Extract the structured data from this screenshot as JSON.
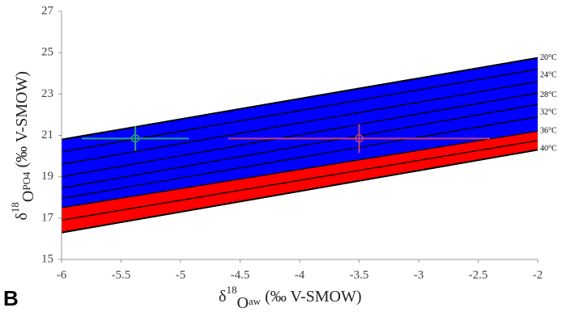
{
  "chart_data": {
    "type": "line",
    "panel_label": "B",
    "xlabel": [
      "δ",
      "18",
      "O",
      "aw",
      " (‰ V-SMOW)"
    ],
    "ylabel": [
      "δ",
      "18",
      "O",
      "PO4",
      " (‰ V-SMOW)"
    ],
    "xlim": [
      -6,
      -2
    ],
    "ylim": [
      15,
      27
    ],
    "xticks": [
      -6,
      -5.5,
      -5,
      -4.5,
      -4,
      -3.5,
      -3,
      -2.5,
      -2
    ],
    "yticks": [
      15,
      17,
      19,
      21,
      23,
      25,
      27
    ],
    "x": [
      -6,
      -2
    ],
    "bands": [
      {
        "color": "#0000ff",
        "lower": [
          17.5,
          21.2
        ],
        "upper": [
          20.8,
          24.75
        ]
      },
      {
        "color": "#ff0000",
        "lower": [
          16.3,
          20.3
        ],
        "upper": [
          17.5,
          21.2
        ]
      }
    ],
    "line_color": "#000000",
    "lines": [
      [
        20.8,
        24.75
      ],
      [
        20.2,
        24.2
      ],
      [
        19.6,
        23.6
      ],
      [
        19.0,
        23.05
      ],
      [
        18.45,
        22.5
      ],
      [
        17.95,
        21.9
      ],
      [
        17.5,
        21.2
      ],
      [
        16.9,
        20.75
      ],
      [
        16.3,
        20.3
      ]
    ],
    "temperature_labels": [
      {
        "label": "20°C",
        "y": 24.75
      },
      {
        "label": "24°C",
        "y": 23.9
      },
      {
        "label": "28°C",
        "y": 22.95
      },
      {
        "label": "32°C",
        "y": 22.1
      },
      {
        "label": "36°C",
        "y": 21.2
      },
      {
        "label": "40°C",
        "y": 20.35
      }
    ],
    "points": [
      {
        "x": -5.38,
        "y": 20.85,
        "xerr": 0.45,
        "yerr": 0.6,
        "color": "#2aa37a"
      },
      {
        "x": -3.5,
        "y": 20.85,
        "xerr": 1.1,
        "yerr": 0.7,
        "color": "#c0407a"
      }
    ]
  }
}
